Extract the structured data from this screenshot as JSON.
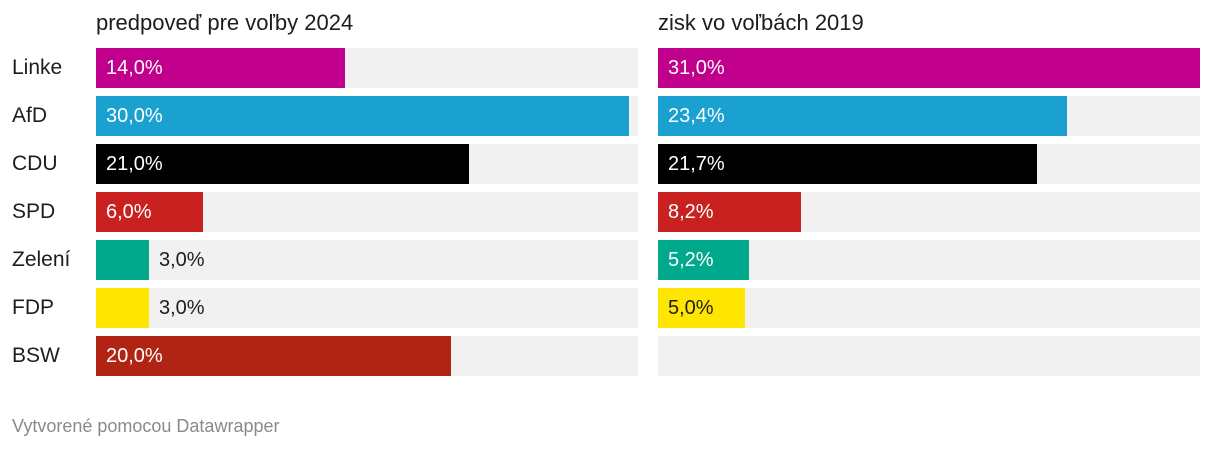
{
  "chart_data": {
    "type": "bar",
    "categories": [
      "Linke",
      "AfD",
      "CDU",
      "SPD",
      "Zelení",
      "FDP",
      "BSW"
    ],
    "colors": [
      "#c0008c",
      "#1aa1cf",
      "#000000",
      "#c92020",
      "#00a88c",
      "#ffe600",
      "#b12414"
    ],
    "panels": [
      {
        "title": "predpoveď pre voľby 2024",
        "max": 30.5,
        "values": [
          14.0,
          30.0,
          21.0,
          6.0,
          3.0,
          3.0,
          20.0
        ],
        "labels": [
          "14,0%",
          "30,0%",
          "21,0%",
          "6,0%",
          "3,0%",
          "3,0%",
          "20,0%"
        ]
      },
      {
        "title": "zisk vo voľbách 2019",
        "max": 31.0,
        "values": [
          31.0,
          23.4,
          21.7,
          8.2,
          5.2,
          5.0,
          null
        ],
        "labels": [
          "31,0%",
          "23,4%",
          "21,7%",
          "8,2%",
          "5,2%",
          "5,0%",
          ""
        ]
      }
    ]
  },
  "footer": "Vytvorené pomocou Datawrapper"
}
